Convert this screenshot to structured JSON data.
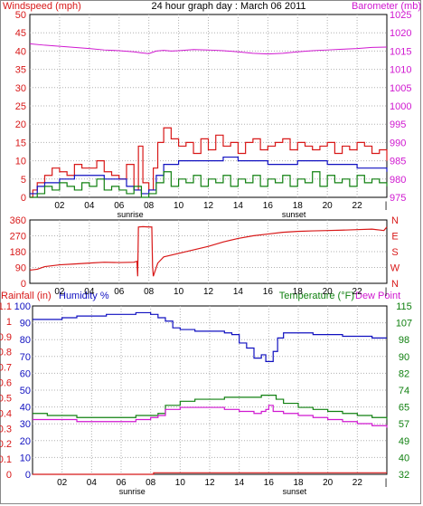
{
  "colors": {
    "wind": "#d81818",
    "wind_avg": "#1010c0",
    "wind_green": "#108010",
    "baro": "#d018d0",
    "rain": "#d81818",
    "humidity": "#1010c0",
    "temperature": "#108010",
    "dewpoint": "#d018d0",
    "grid": "#b0b0b0",
    "axis": "#000000"
  },
  "header": {
    "title": "24 hour graph day : March 06 2011",
    "wind_label": "Windspeed (mph)",
    "baro_label": "Barometer (mb)"
  },
  "bottom_header": {
    "rain_label": "Rainfall (in)",
    "humidity_label": "Humidity %",
    "temp_label": "Temperature (°F)",
    "dew_label": "Dew Point"
  },
  "time_axis": {
    "hours": [
      "02",
      "04",
      "06",
      "08",
      "10",
      "12",
      "14",
      "16",
      "18",
      "20",
      "22"
    ],
    "hour_values": [
      2,
      4,
      6,
      8,
      10,
      12,
      14,
      16,
      18,
      20,
      22
    ],
    "sunrise_label": "sunrise",
    "sunrise_hour": 6.75,
    "sunset_label": "sunset",
    "sunset_hour": 17.75,
    "domain": [
      0,
      24
    ]
  },
  "chart_data": [
    {
      "type": "line",
      "title": "24 hour graph day : March 06 2011",
      "ylabel": "Windspeed (mph)",
      "y2label": "Barometer (mb)",
      "ylim": [
        0,
        50
      ],
      "y_ticks": [
        "0",
        "5",
        "10",
        "15",
        "20",
        "25",
        "30",
        "35",
        "40",
        "45",
        "50"
      ],
      "y2lim": [
        975,
        1025
      ],
      "y2_ticks": [
        "975",
        "980",
        "985",
        "990",
        "995",
        "1000",
        "1005",
        "1010",
        "1015",
        "1020",
        "1025"
      ],
      "series": [
        {
          "name": "",
          "axis": "left",
          "color_key": "wind",
          "x": [
            0,
            0.2,
            0.5,
            1,
            1.5,
            2,
            2.5,
            3,
            3.5,
            4,
            4.5,
            5,
            5.5,
            6,
            6.5,
            7,
            7.3,
            7.6,
            8,
            8.3,
            8.6,
            9,
            9.5,
            10,
            10.5,
            11,
            11.5,
            12,
            12.5,
            13,
            13.5,
            14,
            14.5,
            15,
            15.5,
            16,
            16.5,
            17,
            17.5,
            18,
            18.5,
            19,
            19.5,
            20,
            20.5,
            21,
            21.5,
            22,
            22.5,
            23,
            23.5,
            24
          ],
          "y": [
            0,
            2,
            4,
            6,
            8,
            7,
            6,
            9,
            8,
            8,
            10,
            7,
            6,
            5,
            9,
            2,
            14,
            4,
            2,
            8,
            15,
            19,
            16,
            14,
            15,
            12,
            16,
            13,
            17,
            14,
            15,
            12,
            15,
            16,
            13,
            14,
            15,
            16,
            13,
            15,
            14,
            13,
            14,
            15,
            12,
            14,
            13,
            15,
            14,
            12,
            13,
            10
          ]
        },
        {
          "name": "",
          "axis": "left",
          "color_key": "wind_avg",
          "x": [
            0,
            0.5,
            1,
            2,
            3,
            4,
            5,
            6,
            6.5,
            7,
            7.5,
            8,
            8.5,
            9,
            10,
            11,
            12,
            13,
            14,
            15,
            16,
            17,
            18,
            19,
            20,
            21,
            22,
            23,
            24
          ],
          "y": [
            1,
            3,
            4,
            5,
            6,
            6,
            5,
            5,
            3,
            2,
            1,
            2,
            6,
            9,
            10,
            10,
            10,
            11,
            10,
            10,
            9,
            9,
            10,
            10,
            9,
            9,
            8,
            8,
            7
          ]
        },
        {
          "name": "",
          "axis": "left",
          "color_key": "wind_green",
          "x": [
            0,
            0.5,
            1,
            1.5,
            2,
            2.5,
            3,
            3.5,
            4,
            4.5,
            5,
            5.5,
            6,
            6.5,
            7,
            7.5,
            8,
            8.5,
            9,
            9.5,
            10,
            10.5,
            11,
            11.5,
            12,
            12.5,
            13,
            13.5,
            14,
            14.5,
            15,
            15.5,
            16,
            16.5,
            17,
            17.5,
            18,
            18.5,
            19,
            19.5,
            20,
            20.5,
            21,
            21.5,
            22,
            22.5,
            23,
            23.5,
            24
          ],
          "y": [
            0,
            1,
            3,
            2,
            4,
            3,
            2,
            4,
            3,
            5,
            2,
            3,
            2,
            1,
            3,
            0,
            1,
            4,
            7,
            3,
            5,
            4,
            6,
            3,
            5,
            4,
            6,
            3,
            5,
            4,
            6,
            3,
            5,
            4,
            6,
            3,
            5,
            4,
            7,
            3,
            6,
            4,
            5,
            3,
            6,
            4,
            5,
            4,
            3
          ]
        },
        {
          "name": "",
          "axis": "right",
          "color_key": "baro",
          "x": [
            0,
            1,
            2,
            3,
            4,
            5,
            6,
            7,
            7.5,
            8,
            8.5,
            9,
            9.5,
            10,
            11,
            12,
            13,
            14,
            15,
            16,
            17,
            18,
            19,
            20,
            21,
            22,
            23,
            24
          ],
          "y": [
            1017,
            1016.6,
            1016.3,
            1016.0,
            1015.7,
            1015.3,
            1015.1,
            1014.8,
            1014.5,
            1014.3,
            1015.0,
            1015.2,
            1015.0,
            1015.1,
            1015.4,
            1015.3,
            1015.1,
            1014.8,
            1014.4,
            1014.2,
            1014.4,
            1014.8,
            1015.1,
            1015.3,
            1015.5,
            1015.7,
            1016.0,
            1016.1
          ]
        }
      ]
    },
    {
      "type": "line",
      "ylabel": "",
      "ylim": [
        0,
        360
      ],
      "y_ticks": [
        "0",
        "90",
        "180",
        "270",
        "360"
      ],
      "y2_ticks": [
        "N",
        "W",
        "S",
        "E",
        "N"
      ],
      "series": [
        {
          "name": "",
          "color_key": "wind",
          "x": [
            0,
            0.5,
            1,
            2,
            3,
            4,
            5,
            6,
            7,
            7.2,
            7.25,
            7.3,
            7.6,
            8,
            8.2,
            8.25,
            8.3,
            8.6,
            9,
            10,
            11,
            12,
            13,
            14,
            15,
            16,
            17,
            18,
            19,
            20,
            21,
            22,
            23,
            23.8,
            24
          ],
          "y": [
            75,
            80,
            95,
            105,
            110,
            115,
            120,
            118,
            120,
            125,
            40,
            320,
            322,
            320,
            320,
            100,
            40,
            115,
            150,
            170,
            190,
            210,
            235,
            255,
            270,
            280,
            290,
            295,
            298,
            300,
            302,
            305,
            308,
            300,
            320
          ]
        }
      ]
    },
    {
      "type": "line",
      "ylabel": "Rainfall (in)",
      "y2label": "Humidity %",
      "y3label": "Temperature (°F)",
      "ylim": [
        0,
        1.1
      ],
      "y_ticks": [
        "0",
        "0.1",
        "0.2",
        "0.3",
        "0.4",
        "0.5",
        "0.6",
        "0.7",
        "0.8",
        "0.9",
        "1",
        "1.1"
      ],
      "humidity_ticks": [
        "0",
        "10",
        "20",
        "30",
        "40",
        "50",
        "60",
        "70",
        "80",
        "90",
        "100"
      ],
      "y2lim": [
        32,
        115
      ],
      "y2_ticks": [
        "32",
        "40",
        "49",
        "57",
        "65",
        "74",
        "82",
        "90",
        "98",
        "107",
        "115"
      ],
      "series": [
        {
          "name": "Rainfall (in)",
          "axis": "rain",
          "color_key": "rain",
          "x": [
            0,
            8,
            8.2,
            24
          ],
          "y": [
            0.0,
            0.0,
            0.01,
            0.01
          ]
        },
        {
          "name": "Humidity %",
          "axis": "humidity",
          "color_key": "humidity",
          "x": [
            0,
            1,
            2,
            3,
            4,
            5,
            6,
            7,
            7.8,
            8,
            8.5,
            9,
            9.5,
            10,
            11,
            12,
            13,
            13.5,
            14,
            14.5,
            15,
            15.5,
            15.8,
            16,
            16.3,
            16.6,
            17,
            18,
            19,
            20,
            21,
            22,
            23,
            24
          ],
          "y": [
            92,
            92,
            93,
            94,
            94,
            95,
            95,
            96,
            96,
            95,
            93,
            91,
            87,
            86,
            85,
            85,
            84,
            83,
            78,
            75,
            69,
            71,
            67,
            67,
            73,
            81,
            84,
            84,
            83,
            83,
            82,
            82,
            81,
            81
          ]
        },
        {
          "name": "Temperature (°F)",
          "axis": "temp",
          "color_key": "temperature",
          "x": [
            0,
            1,
            2,
            3,
            4,
            5,
            6,
            7,
            8,
            8.5,
            9,
            10,
            11,
            12,
            13,
            14,
            15,
            15.5,
            16,
            16.5,
            17,
            18,
            19,
            20,
            21,
            22,
            23,
            24
          ],
          "y": [
            62,
            61,
            61,
            60,
            60,
            60,
            60,
            61,
            61,
            62,
            66,
            68,
            69,
            69,
            70,
            70,
            70,
            71,
            71,
            69,
            67,
            65,
            64,
            63,
            62,
            61,
            60,
            59
          ]
        },
        {
          "name": "Dew Point",
          "axis": "temp",
          "color_key": "dewpoint",
          "x": [
            0,
            1,
            2,
            3,
            4,
            5,
            6,
            7,
            8,
            8.5,
            9,
            10,
            11,
            12,
            13,
            14,
            15,
            15.5,
            15.8,
            16,
            16.3,
            17,
            18,
            19,
            20,
            21,
            22,
            23,
            24
          ],
          "y": [
            59,
            59,
            59,
            58,
            58,
            58,
            58,
            59,
            60,
            61,
            64,
            65,
            65,
            65,
            64,
            63,
            62,
            63,
            64,
            66,
            63,
            62,
            61,
            60,
            59,
            58,
            57,
            56,
            55
          ]
        }
      ]
    }
  ]
}
